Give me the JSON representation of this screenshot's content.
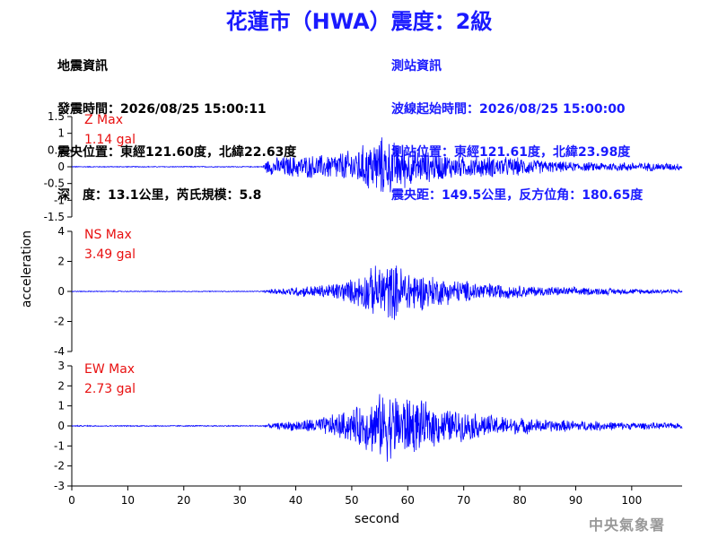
{
  "title": "花蓮市（HWA）震度：2級",
  "event_info": {
    "heading": "地震資訊",
    "origin_time": "發震時間：2026/08/25 15:00:11",
    "epicenter": "震央位置：東經121.60度，北緯22.63度",
    "depth_magnitude": "深　度：13.1公里，芮氏規模：5.8"
  },
  "station_info": {
    "heading": "測站資訊",
    "wave_start": "波線起始時間：2026/08/25 15:00:00",
    "location": "測站位置：東經121.61度，北緯23.98度",
    "distance_azimuth": "震央距：149.5公里，反方位角：180.65度"
  },
  "logo_text": "中央氣象署",
  "chart_data": {
    "type": "line",
    "xlabel": "second",
    "ylabel": "acceleration",
    "xlim": [
      0,
      109
    ],
    "xticks": [
      0,
      10,
      20,
      30,
      40,
      50,
      60,
      70,
      80,
      90,
      100
    ],
    "line_color": "#0000ff",
    "label_color": "#e81010",
    "panels": [
      {
        "component": "Z",
        "max_label": "Z Max",
        "max_value": "1.14 gal",
        "peak": 1.14,
        "ylim": [
          -1.5,
          1.5
        ],
        "yticks": [
          1.5,
          1,
          0.5,
          0,
          -0.5,
          -1,
          -1.5
        ],
        "envelope_t": [
          0,
          34,
          35,
          38,
          45,
          50,
          53,
          55,
          58,
          62,
          66,
          70,
          75,
          80,
          85,
          90,
          95,
          100,
          109
        ],
        "envelope_a": [
          0.015,
          0.015,
          0.25,
          0.35,
          0.4,
          0.55,
          0.8,
          1.0,
          0.8,
          0.55,
          0.45,
          0.35,
          0.35,
          0.3,
          0.2,
          0.15,
          0.15,
          0.15,
          0.12
        ]
      },
      {
        "component": "NS",
        "max_label": "NS Max",
        "max_value": "3.49 gal",
        "peak": 3.49,
        "ylim": [
          -4,
          4
        ],
        "yticks": [
          4,
          2,
          0,
          -2,
          -4
        ],
        "envelope_t": [
          0,
          34,
          36,
          40,
          45,
          50,
          53,
          56,
          58,
          62,
          66,
          70,
          75,
          80,
          85,
          90,
          100,
          109
        ],
        "envelope_a": [
          0.03,
          0.03,
          0.2,
          0.35,
          0.5,
          0.9,
          1.6,
          2.2,
          2.0,
          1.4,
          1.0,
          0.8,
          0.6,
          0.45,
          0.35,
          0.3,
          0.2,
          0.15
        ]
      },
      {
        "component": "EW",
        "max_label": "EW Max",
        "max_value": "2.73 gal",
        "peak": 2.73,
        "ylim": [
          -3,
          3
        ],
        "yticks": [
          3,
          2,
          1,
          0,
          -1,
          -2,
          -3
        ],
        "envelope_t": [
          0,
          34,
          36,
          40,
          45,
          50,
          53,
          56,
          59,
          62,
          66,
          70,
          75,
          80,
          85,
          90,
          100,
          109
        ],
        "envelope_a": [
          0.03,
          0.03,
          0.15,
          0.3,
          0.5,
          0.9,
          1.4,
          1.9,
          1.8,
          1.4,
          1.0,
          0.8,
          0.6,
          0.45,
          0.35,
          0.3,
          0.2,
          0.15
        ]
      }
    ]
  }
}
